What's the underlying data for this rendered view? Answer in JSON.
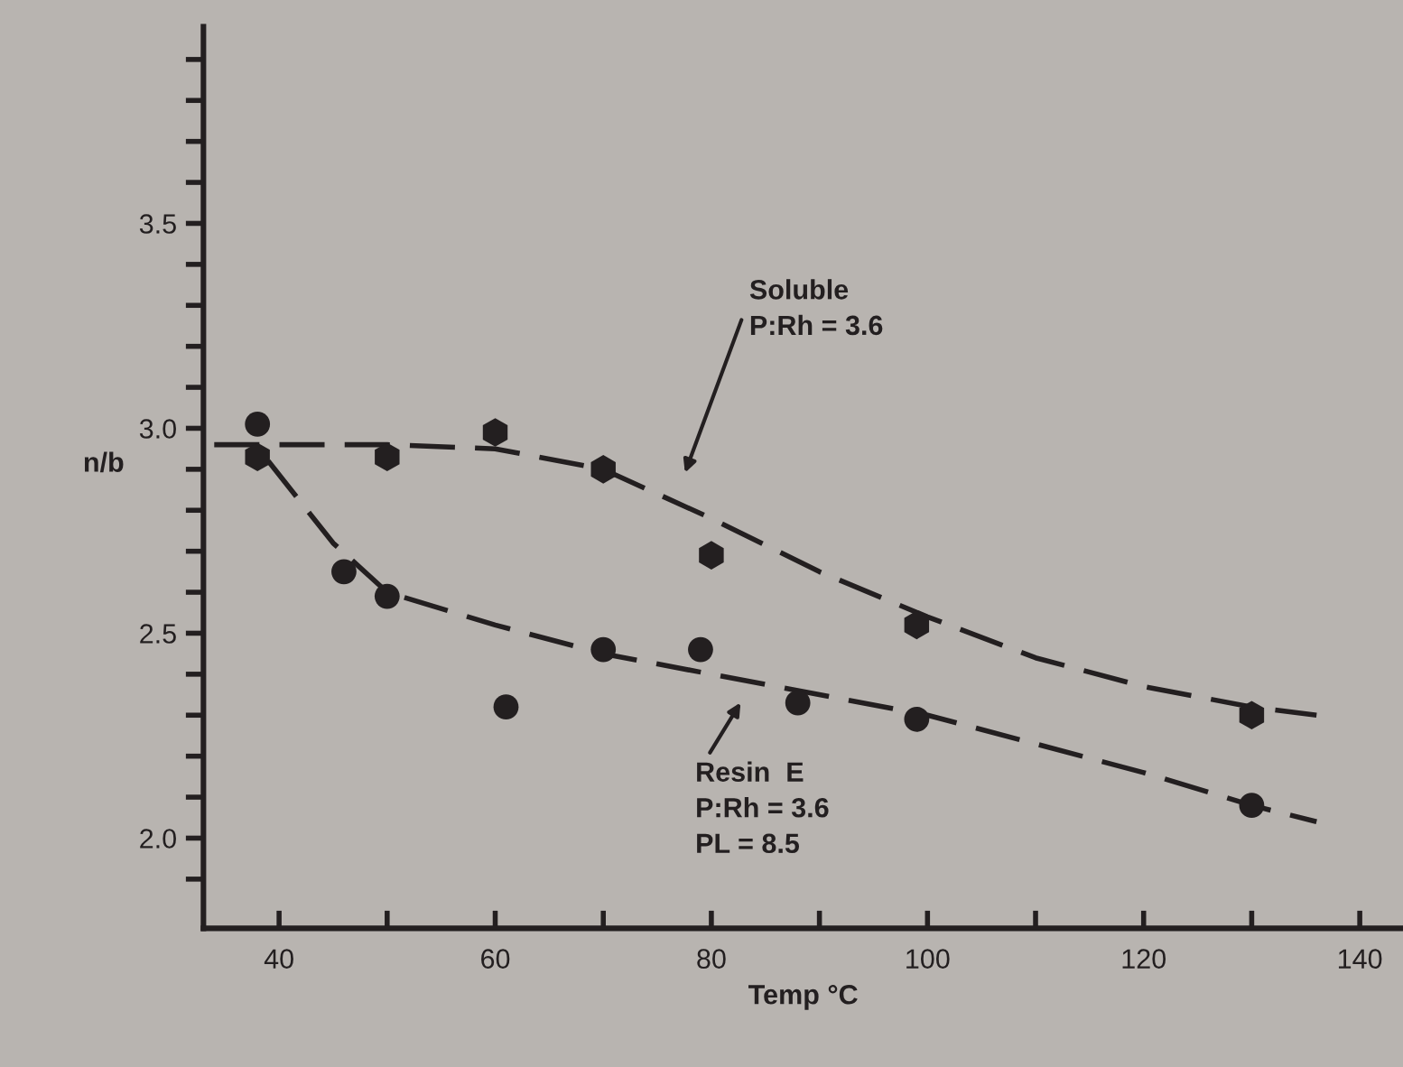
{
  "chart_data": {
    "type": "scatter",
    "xlabel": "Temp °C",
    "ylabel": "n/b",
    "xlim": [
      33,
      144
    ],
    "ylim": [
      1.78,
      3.98
    ],
    "xticks": [
      40,
      {
        "value": 50,
        "label": null
      },
      60,
      {
        "value": 70,
        "label": null
      },
      80,
      {
        "value": 90,
        "label": null
      },
      100,
      {
        "value": 110,
        "label": null
      },
      120,
      {
        "value": 130,
        "label": null
      },
      140
    ],
    "yticks": [
      {
        "value": 1.9,
        "label": null
      },
      {
        "value": 2.0,
        "label": "2.0"
      },
      {
        "value": 2.1,
        "label": null
      },
      {
        "value": 2.2,
        "label": null
      },
      {
        "value": 2.3,
        "label": null
      },
      {
        "value": 2.4,
        "label": null
      },
      {
        "value": 2.5,
        "label": "2.5"
      },
      {
        "value": 2.6,
        "label": null
      },
      {
        "value": 2.7,
        "label": null
      },
      {
        "value": 2.8,
        "label": null
      },
      {
        "value": 2.9,
        "label": null
      },
      {
        "value": 3.0,
        "label": "3.0"
      },
      {
        "value": 3.1,
        "label": null
      },
      {
        "value": 3.2,
        "label": null
      },
      {
        "value": 3.3,
        "label": null
      },
      {
        "value": 3.4,
        "label": null
      },
      {
        "value": 3.5,
        "label": "3.5"
      },
      {
        "value": 3.6,
        "label": null
      },
      {
        "value": 3.7,
        "label": null
      },
      {
        "value": 3.8,
        "label": null
      },
      {
        "value": 3.9,
        "label": null
      }
    ],
    "grid": false,
    "legend": false,
    "series": [
      {
        "color": "#231f20",
        "x": [
          38,
          50,
          60,
          70,
          80,
          99,
          130
        ],
        "values": [
          2.93,
          2.93,
          2.99,
          2.9,
          2.69,
          2.52,
          2.3
        ]
      },
      {
        "marker": "circle",
        "color": "#231f20",
        "x": [
          38,
          46,
          50,
          61,
          70,
          79,
          88,
          99,
          130
        ],
        "values": [
          3.01,
          2.65,
          2.59,
          2.32,
          2.46,
          2.46,
          2.33,
          2.29,
          2.08
        ]
      },
      {
        "type": "line",
        "line_style": "dashed",
        "color": "#231f20",
        "x": [
          34,
          50,
          60,
          70,
          80,
          90,
          100,
          110,
          120,
          130,
          136
        ],
        "values": [
          2.96,
          2.96,
          2.95,
          2.9,
          2.78,
          2.65,
          2.54,
          2.44,
          2.37,
          2.32,
          2.3
        ]
      },
      {
        "type": "line",
        "line_style": "dashed",
        "color": "#231f20",
        "x": [
          39,
          45,
          50,
          60,
          70,
          80,
          88,
          100,
          110,
          120,
          130,
          136
        ],
        "values": [
          2.92,
          2.72,
          2.6,
          2.52,
          2.45,
          2.4,
          2.36,
          2.3,
          2.23,
          2.16,
          2.08,
          2.04
        ]
      }
    ],
    "annotations": [
      "Soluble\nP:Rh = 3.6",
      "Resin  E\nP:Rh = 3.6\nPL = 8.5"
    ]
  }
}
